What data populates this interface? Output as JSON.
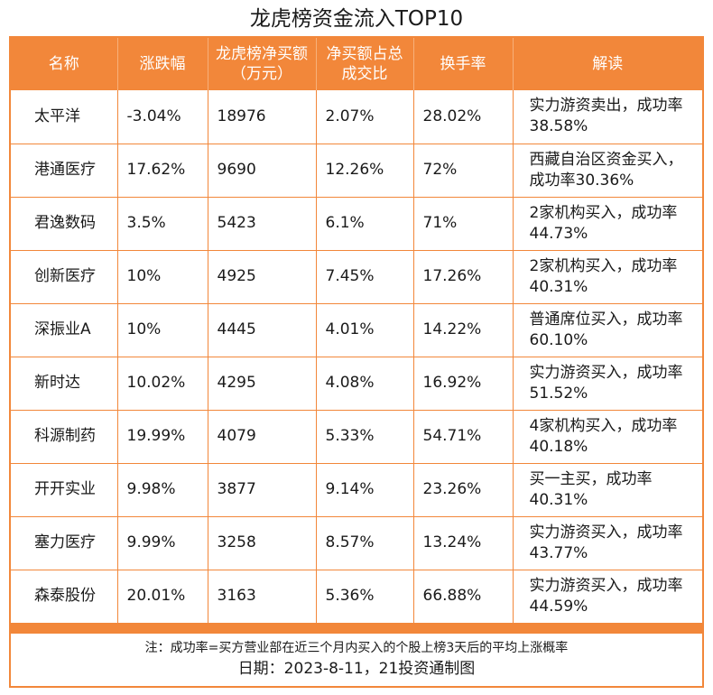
{
  "title": "龙虎榜资金流入TOP10",
  "table": {
    "headers": [
      "名称",
      "涨跌幅",
      "龙虎榜净买额（万元）",
      "净买额占总成交比",
      "换手率",
      "解读"
    ],
    "rows": [
      [
        "太平洋",
        "-3.04%",
        "18976",
        "2.07%",
        "28.02%",
        "实力游资卖出，成功率38.58%"
      ],
      [
        "港通医疗",
        "17.62%",
        "9690",
        "12.26%",
        "72%",
        "西藏自治区资金买入，成功率30.36%"
      ],
      [
        "君逸数码",
        "3.5%",
        "5423",
        "6.1%",
        "71%",
        "2家机构买入，成功率44.73%"
      ],
      [
        "创新医疗",
        "10%",
        "4925",
        "7.45%",
        "17.26%",
        "2家机构买入，成功率40.31%"
      ],
      [
        "深振业A",
        "10%",
        "4445",
        "4.01%",
        "14.22%",
        "普通席位买入，成功率60.10%"
      ],
      [
        "新时达",
        "10.02%",
        "4295",
        "4.08%",
        "16.92%",
        "实力游资买入，成功率51.52%"
      ],
      [
        "科源制药",
        "19.99%",
        "4079",
        "5.33%",
        "54.71%",
        "4家机构买入，成功率40.18%"
      ],
      [
        "开开实业",
        "9.98%",
        "3877",
        "9.14%",
        "23.26%",
        "买一主买，成功率40.31%"
      ],
      [
        "塞力医疗",
        "9.99%",
        "3258",
        "8.57%",
        "13.24%",
        "实力游资买入，成功率43.77%"
      ],
      [
        "森泰股份",
        "20.01%",
        "3163",
        "5.36%",
        "66.88%",
        "实力游资买入，成功率44.59%"
      ]
    ]
  },
  "footer": {
    "note": "注：成功率=买方营业部在近三个月内买入的个股上榜3天后的平均上涨概率",
    "date": "日期：2023-8-11，21投资通制图"
  },
  "colors": {
    "accent": "#f2873a",
    "header_text": "#ffffff"
  }
}
